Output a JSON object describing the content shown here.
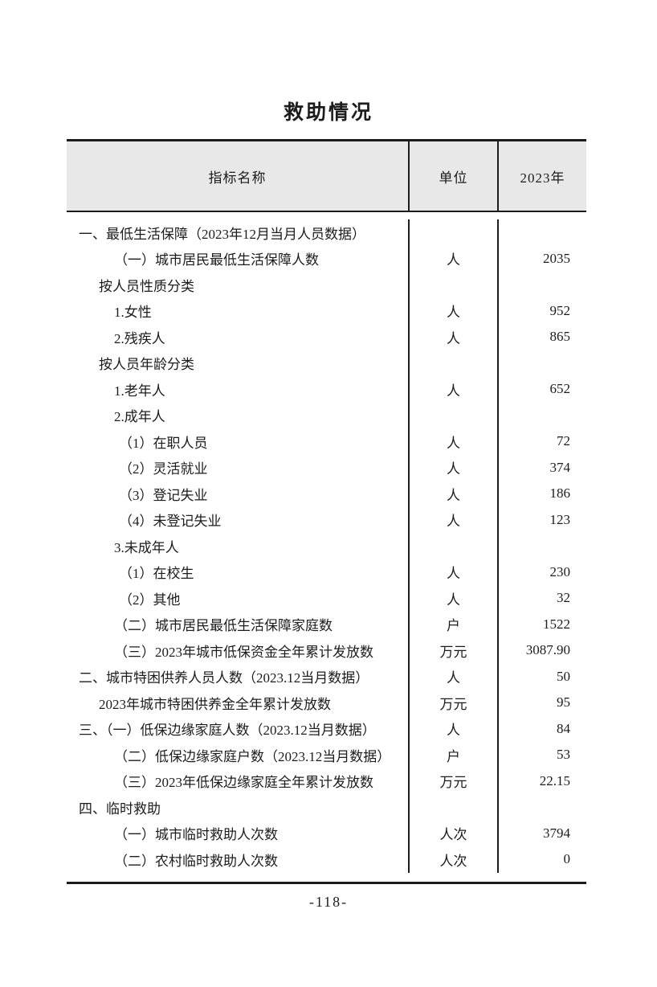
{
  "page": {
    "title": "救助情况",
    "page_number": "-118-"
  },
  "table": {
    "columns": [
      {
        "label": "指标名称"
      },
      {
        "label": "单位"
      },
      {
        "label": "2023年"
      }
    ],
    "rows": [
      {
        "indicator": "一、最低生活保障（2023年12月当月人员数据）",
        "unit": "",
        "value": "",
        "level": 1
      },
      {
        "indicator": "（一）城市居民最低生活保障人数",
        "unit": "人",
        "value": "2035",
        "level": 3
      },
      {
        "indicator": "按人员性质分类",
        "unit": "",
        "value": "",
        "level": 2
      },
      {
        "indicator": "1.女性",
        "unit": "人",
        "value": "952",
        "level": 3
      },
      {
        "indicator": "2.残疾人",
        "unit": "人",
        "value": "865",
        "level": 3
      },
      {
        "indicator": "按人员年龄分类",
        "unit": "",
        "value": "",
        "level": 2
      },
      {
        "indicator": "1.老年人",
        "unit": "人",
        "value": "652",
        "level": 3
      },
      {
        "indicator": "2.成年人",
        "unit": "",
        "value": "",
        "level": 3
      },
      {
        "indicator": "（1）在职人员",
        "unit": "人",
        "value": "72",
        "level": 4
      },
      {
        "indicator": "（2）灵活就业",
        "unit": "人",
        "value": "374",
        "level": 4
      },
      {
        "indicator": "（3）登记失业",
        "unit": "人",
        "value": "186",
        "level": 4
      },
      {
        "indicator": "（4）未登记失业",
        "unit": "人",
        "value": "123",
        "level": 4
      },
      {
        "indicator": "3.未成年人",
        "unit": "",
        "value": "",
        "level": 3
      },
      {
        "indicator": "（1）在校生",
        "unit": "人",
        "value": "230",
        "level": 4
      },
      {
        "indicator": "（2）其他",
        "unit": "人",
        "value": "32",
        "level": 4
      },
      {
        "indicator": "（二）城市居民最低生活保障家庭数",
        "unit": "户",
        "value": "1522",
        "level": 3
      },
      {
        "indicator": "（三）2023年城市低保资金全年累计发放数",
        "unit": "万元",
        "value": "3087.90",
        "level": 3
      },
      {
        "indicator": "二、城市特困供养人员人数（2023.12当月数据）",
        "unit": "人",
        "value": "50",
        "level": 1
      },
      {
        "indicator": "2023年城市特困供养金全年累计发放数",
        "unit": "万元",
        "value": "95",
        "level": 2
      },
      {
        "indicator": "三、（一）低保边缘家庭人数（2023.12当月数据）",
        "unit": "人",
        "value": "84",
        "level": 1
      },
      {
        "indicator": "（二）低保边缘家庭户数（2023.12当月数据）",
        "unit": "户",
        "value": "53",
        "level": 3
      },
      {
        "indicator": "（三）2023年低保边缘家庭全年累计发放数",
        "unit": "万元",
        "value": "22.15",
        "level": 3
      },
      {
        "indicator": "四、临时救助",
        "unit": "",
        "value": "",
        "level": 1
      },
      {
        "indicator": "（一）城市临时救助人次数",
        "unit": "人次",
        "value": "3794",
        "level": 3
      },
      {
        "indicator": "（二）农村临时救助人次数",
        "unit": "人次",
        "value": "0",
        "level": 3
      }
    ]
  },
  "colors": {
    "header_background": "#e8e8e8",
    "border": "#1c1c1c",
    "text": "#1c1c1c",
    "page_background": "#ffffff"
  }
}
